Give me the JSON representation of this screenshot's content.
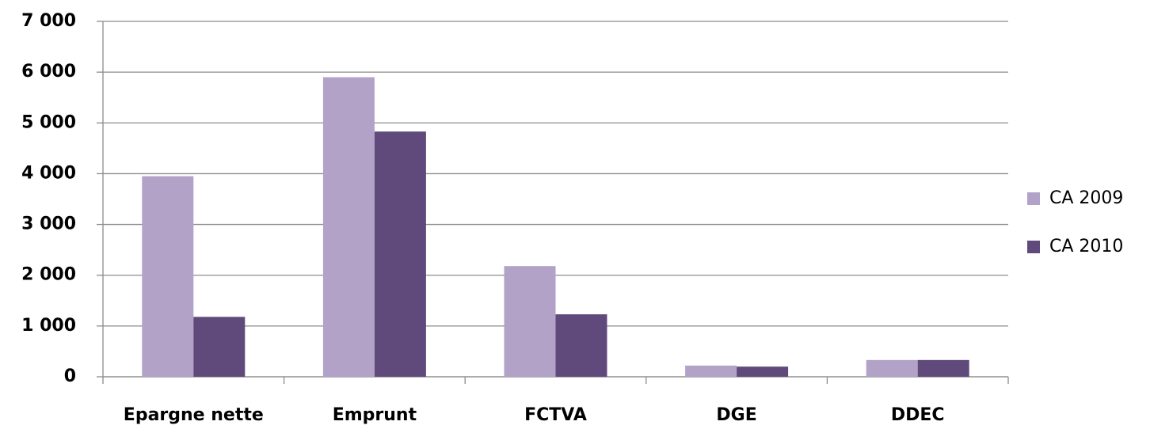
{
  "chart_data": {
    "type": "bar",
    "categories": [
      "Epargne nette",
      "Emprunt",
      "FCTVA",
      "DGE",
      "DDEC"
    ],
    "series": [
      {
        "name": "CA 2009",
        "color": "#b3a2c7",
        "values": [
          3950,
          5900,
          2180,
          220,
          330
        ]
      },
      {
        "name": "CA 2010",
        "color": "#604a7b",
        "values": [
          1180,
          4830,
          1230,
          200,
          330
        ]
      }
    ],
    "ylim": [
      0,
      7000
    ],
    "yticks": [
      0,
      {
        "value": 1000,
        "label": "1 000"
      },
      {
        "value": 2000,
        "label": "2 000"
      },
      {
        "value": 3000,
        "label": "3 000"
      },
      {
        "value": 4000,
        "label": "4 000"
      },
      {
        "value": 5000,
        "label": "5 000"
      },
      {
        "value": 6000,
        "label": "6 000"
      },
      {
        "value": 7000,
        "label": "7 000"
      }
    ],
    "grid": true,
    "legend": "right"
  }
}
